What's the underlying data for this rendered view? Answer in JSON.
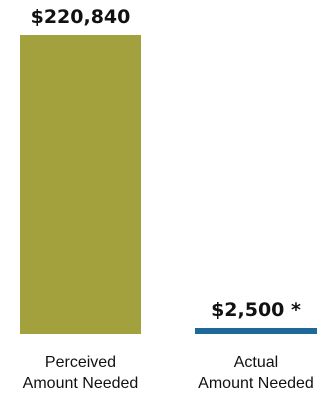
{
  "chart_data": {
    "type": "bar",
    "categories": [
      "Perceived Amount Needed",
      "Actual Amount Needed"
    ],
    "category_lines": [
      [
        "Perceived",
        "Amount Needed"
      ],
      [
        "Actual",
        "Amount Needed"
      ]
    ],
    "values": [
      220840,
      2500
    ],
    "value_labels": [
      "$220,840",
      "$2,500 *"
    ],
    "colors": [
      "#a3a13d",
      "#1d6a99"
    ],
    "title": "",
    "xlabel": "",
    "ylabel": "",
    "ylim": [
      0,
      220840
    ],
    "grid": false,
    "legend": "none"
  }
}
